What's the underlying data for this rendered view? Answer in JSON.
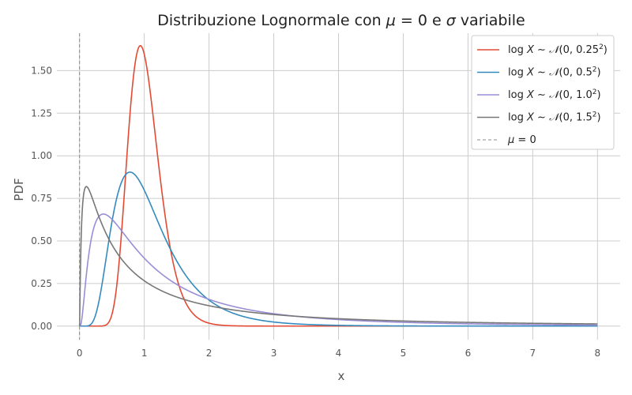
{
  "chart_data": {
    "type": "line",
    "title_parts": {
      "prefix": "Distribuzione Lognormale con ",
      "mu": "μ",
      "eq": " = 0 e ",
      "sigma": "σ",
      "suffix": " variabile"
    },
    "xlabel": "x",
    "ylabel": "PDF",
    "xlim": [
      -0.35,
      8.35
    ],
    "ylim": [
      -0.08,
      1.72
    ],
    "xticks": [
      0,
      1,
      2,
      3,
      4,
      5,
      6,
      7,
      8
    ],
    "xtick_labels": [
      "0",
      "1",
      "2",
      "3",
      "4",
      "5",
      "6",
      "7",
      "8"
    ],
    "yticks": [
      0.0,
      0.25,
      0.5,
      0.75,
      1.0,
      1.25,
      1.5
    ],
    "ytick_labels": [
      "0.00",
      "0.25",
      "0.50",
      "0.75",
      "1.00",
      "1.25",
      "1.50"
    ],
    "grid": true,
    "legend_position": "top-right",
    "x_range": [
      0,
      8
    ],
    "series": [
      {
        "sigma": 0.25,
        "label_sigma": "0.25",
        "color": "#E24A33",
        "x": [
          0.01,
          0.5,
          0.7,
          0.8,
          0.9,
          0.94,
          1.0,
          1.1,
          1.2,
          1.4,
          1.6,
          2.0,
          3.0
        ],
        "y": [
          0.0,
          0.17,
          1.04,
          1.45,
          1.63,
          1.65,
          1.6,
          1.32,
          0.96,
          0.41,
          0.15,
          0.02,
          0.0
        ]
      },
      {
        "sigma": 0.5,
        "label_sigma": "0.5",
        "color": "#348ABD",
        "x": [
          0.01,
          0.2,
          0.4,
          0.6,
          0.78,
          1.0,
          1.5,
          2.0,
          3.0,
          4.0,
          8.0
        ],
        "y": [
          0.0,
          0.01,
          0.33,
          0.8,
          0.9,
          0.8,
          0.42,
          0.18,
          0.03,
          0.0,
          0.0
        ]
      },
      {
        "sigma": 1.0,
        "label_sigma": "1.0",
        "color": "#988ED5",
        "x": [
          0.01,
          0.1,
          0.2,
          0.37,
          0.6,
          1.0,
          2.0,
          3.0,
          4.0,
          6.0,
          8.0
        ],
        "y": [
          0.0,
          0.28,
          0.55,
          0.66,
          0.58,
          0.4,
          0.16,
          0.07,
          0.04,
          0.01,
          0.01
        ]
      },
      {
        "sigma": 1.5,
        "label_sigma": "1.5",
        "color": "#777777",
        "x": [
          0.01,
          0.05,
          0.11,
          0.3,
          0.6,
          1.0,
          2.0,
          4.0,
          8.0
        ],
        "y": [
          0.01,
          0.62,
          0.82,
          0.65,
          0.43,
          0.27,
          0.12,
          0.04,
          0.01
        ]
      }
    ],
    "vline": {
      "x": 0,
      "color": "#888888",
      "label_sym": "μ",
      "label_rest": " = 0"
    },
    "legend_template": {
      "log": "log",
      "var": "X",
      "sim": " ∼ ",
      "norm": "𝒩",
      "open": "(0, ",
      "close": ")",
      "exp": "2"
    }
  }
}
